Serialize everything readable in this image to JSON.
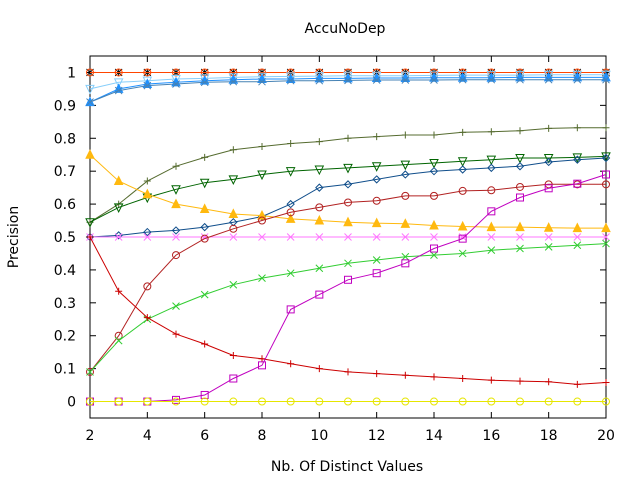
{
  "chart_data": {
    "type": "line",
    "title": "AccuNoDep",
    "xlabel": "Nb. Of Distinct Values",
    "ylabel": "Precision",
    "xlim": [
      2,
      20
    ],
    "ylim": [
      -0.05,
      1.05
    ],
    "grid": false,
    "legend": "none",
    "xticks": [
      2,
      4,
      6,
      8,
      10,
      12,
      14,
      16,
      18,
      20
    ],
    "yticks": [
      0,
      0.1,
      0.2,
      0.3,
      0.4,
      0.5,
      0.6,
      0.7,
      0.8,
      0.9,
      1
    ],
    "x": [
      2,
      3,
      4,
      5,
      6,
      7,
      8,
      9,
      10,
      11,
      12,
      13,
      14,
      15,
      16,
      17,
      18,
      19,
      20
    ],
    "series": [
      {
        "color": "#000000",
        "marker": "star",
        "values": [
          1,
          1,
          1,
          1,
          1,
          1,
          1,
          1,
          1,
          1,
          1,
          1,
          1,
          1,
          1,
          1,
          1,
          1,
          1
        ]
      },
      {
        "color": "#ff4500",
        "marker": "circle",
        "values": [
          1,
          1,
          1,
          1,
          1,
          1,
          1,
          1,
          1,
          1,
          1,
          1,
          1,
          1,
          1,
          1,
          1,
          1,
          1
        ]
      },
      {
        "color": "#87cefa",
        "marker": "triangle-down",
        "values": [
          0.95,
          0.97,
          0.975,
          0.98,
          0.982,
          0.985,
          0.987,
          0.988,
          0.989,
          0.99,
          0.99,
          0.99,
          0.991,
          0.992,
          0.992,
          0.992,
          0.993,
          0.993,
          0.993
        ]
      },
      {
        "color": "#1e90ff",
        "marker": "triangle",
        "values": [
          0.91,
          0.95,
          0.965,
          0.97,
          0.975,
          0.978,
          0.98,
          0.98,
          0.982,
          0.982,
          0.983,
          0.983,
          0.984,
          0.984,
          0.984,
          0.985,
          0.985,
          0.985,
          0.985
        ]
      },
      {
        "color": "#4682b4",
        "marker": "x",
        "values": [
          0.91,
          0.945,
          0.96,
          0.965,
          0.97,
          0.972,
          0.972,
          0.975,
          0.975,
          0.976,
          0.977,
          0.977,
          0.977,
          0.978,
          0.978,
          0.978,
          0.978,
          0.978,
          0.978
        ]
      },
      {
        "color": "#556b2f",
        "marker": "plus",
        "values": [
          0.545,
          0.6,
          0.67,
          0.715,
          0.742,
          0.765,
          0.775,
          0.784,
          0.79,
          0.8,
          0.805,
          0.81,
          0.81,
          0.818,
          0.82,
          0.823,
          0.83,
          0.832,
          0.832
        ]
      },
      {
        "color": "#006400",
        "marker": "triangle-down",
        "values": [
          0.545,
          0.59,
          0.62,
          0.645,
          0.665,
          0.675,
          0.69,
          0.7,
          0.705,
          0.71,
          0.715,
          0.72,
          0.725,
          0.73,
          0.735,
          0.74,
          0.74,
          0.742,
          0.745
        ]
      },
      {
        "color": "#104e8b",
        "marker": "diamond",
        "values": [
          0.5,
          0.505,
          0.515,
          0.52,
          0.53,
          0.545,
          0.562,
          0.6,
          0.65,
          0.66,
          0.675,
          0.69,
          0.7,
          0.705,
          0.71,
          0.715,
          0.728,
          0.735,
          0.74
        ]
      },
      {
        "color": "#ffb90f",
        "marker": "triangle",
        "values": [
          0.75,
          0.67,
          0.63,
          0.6,
          0.585,
          0.57,
          0.565,
          0.555,
          0.55,
          0.545,
          0.542,
          0.54,
          0.535,
          0.532,
          0.53,
          0.53,
          0.528,
          0.527,
          0.527
        ]
      },
      {
        "color": "#ff77ff",
        "marker": "x",
        "values": [
          0.5,
          0.5,
          0.5,
          0.5,
          0.5,
          0.5,
          0.5,
          0.5,
          0.5,
          0.5,
          0.5,
          0.5,
          0.5,
          0.5,
          0.5,
          0.5,
          0.5,
          0.5,
          0.5
        ]
      },
      {
        "color": "#b22222",
        "marker": "circle",
        "values": [
          0.09,
          0.2,
          0.35,
          0.445,
          0.495,
          0.525,
          0.55,
          0.575,
          0.59,
          0.605,
          0.61,
          0.625,
          0.625,
          0.64,
          0.642,
          0.652,
          0.66,
          0.66,
          0.66
        ]
      },
      {
        "color": "#32cd32",
        "marker": "x",
        "values": [
          0.09,
          0.185,
          0.25,
          0.29,
          0.325,
          0.355,
          0.375,
          0.39,
          0.405,
          0.42,
          0.43,
          0.44,
          0.445,
          0.45,
          0.46,
          0.465,
          0.47,
          0.475,
          0.48
        ]
      },
      {
        "color": "#cc0000",
        "marker": "plus",
        "values": [
          0.5,
          0.335,
          0.255,
          0.205,
          0.175,
          0.14,
          0.13,
          0.115,
          0.1,
          0.09,
          0.085,
          0.08,
          0.075,
          0.07,
          0.065,
          0.062,
          0.06,
          0.052,
          0.058
        ]
      },
      {
        "color": "#c000c0",
        "marker": "square",
        "values": [
          0,
          0,
          0,
          0.005,
          0.02,
          0.07,
          0.11,
          0.28,
          0.325,
          0.37,
          0.39,
          0.42,
          0.465,
          0.495,
          0.578,
          0.62,
          0.648,
          0.662,
          0.69
        ]
      },
      {
        "color": "#e6e600",
        "marker": "circle",
        "values": [
          0,
          0,
          0,
          0,
          0,
          0,
          0,
          0,
          0,
          0,
          0,
          0,
          0,
          0,
          0,
          0,
          0,
          0,
          0
        ]
      }
    ]
  }
}
